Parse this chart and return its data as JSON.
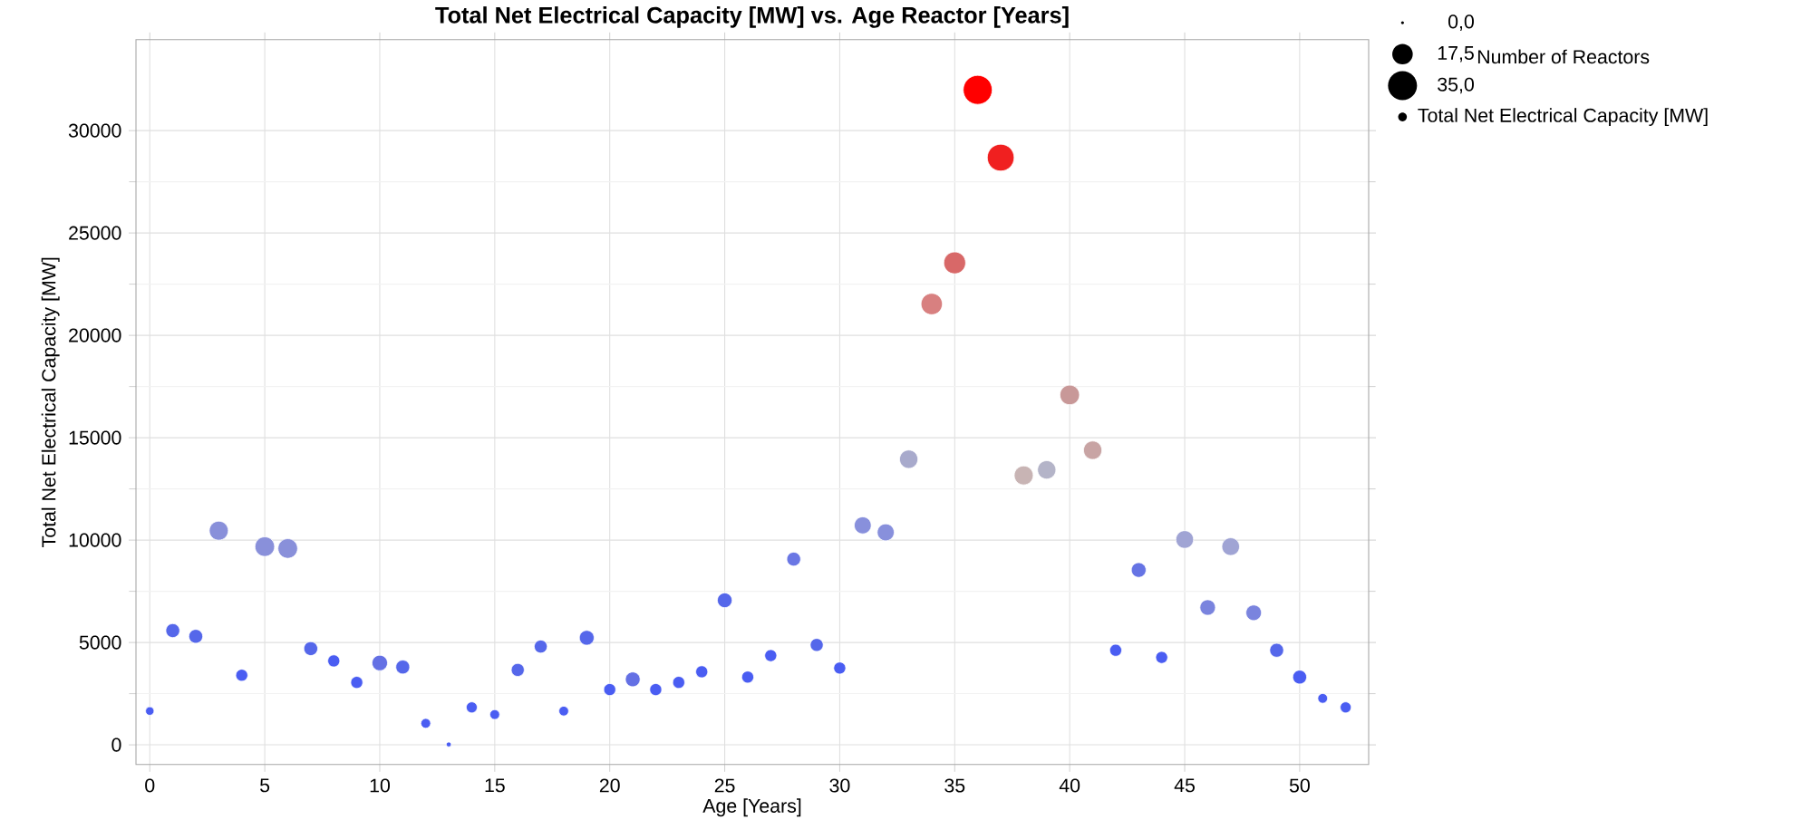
{
  "chart_data": {
    "type": "bubble",
    "title": "Total Net Electrical Capacity [MW] vs. Age Reactor [Years]",
    "xlabel": "Age [Years]",
    "ylabel": "Total Net Electrical Capacity [MW]",
    "legend_title": "Number of Reactors",
    "xlim": [
      -0.6,
      53
    ],
    "xticks": [
      0,
      5,
      10,
      15,
      20,
      25,
      30,
      35,
      40,
      45,
      50
    ],
    "ylim": [
      -960,
      34440
    ],
    "yticks": [
      0,
      5000,
      10000,
      15000,
      20000,
      25000,
      30000
    ],
    "grid": true,
    "legend": "top right",
    "marker": "circle",
    "size_legend": [
      {
        "value": 0,
        "label": "0,0"
      },
      {
        "value": 17.5,
        "label": "17,5"
      },
      {
        "value": 35,
        "label": "35,0"
      }
    ],
    "series": [
      {
        "name": "Total Net Electrical Capacity [MW]",
        "x": [
          0,
          1,
          2,
          3,
          4,
          5,
          6,
          7,
          8,
          9,
          10,
          11,
          12,
          13,
          14,
          15,
          16,
          17,
          18,
          19,
          20,
          21,
          22,
          23,
          24,
          25,
          26,
          27,
          28,
          29,
          30,
          31,
          32,
          33,
          34,
          35,
          36,
          37,
          38,
          39,
          40,
          41,
          42,
          43,
          44,
          45,
          46,
          47,
          48,
          49,
          50,
          51,
          52
        ],
        "values": [
          1650,
          5580,
          5300,
          10460,
          3400,
          9680,
          9590,
          4700,
          4100,
          3050,
          4000,
          3800,
          1050,
          20,
          1830,
          1480,
          3660,
          4800,
          1650,
          5230,
          2700,
          3200,
          2700,
          3050,
          3570,
          7060,
          3310,
          4360,
          9070,
          4880,
          3750,
          10720,
          10380,
          13950,
          21530,
          23540,
          31990,
          28680,
          13160,
          13430,
          17090,
          14390,
          4620,
          8540,
          4270,
          10030,
          6710,
          9680,
          6450,
          4620,
          3310,
          2270,
          1830
        ],
        "sizes": [
          3,
          8,
          8,
          15,
          6,
          16,
          16,
          8,
          6,
          6,
          10,
          8,
          4,
          1,
          5,
          4,
          7,
          7,
          4,
          9,
          6,
          9,
          6,
          6,
          6,
          9,
          6,
          6,
          8,
          7,
          6,
          12,
          12,
          14,
          19,
          20,
          35,
          30,
          15,
          14,
          16,
          14,
          6,
          9,
          6,
          13,
          10,
          13,
          10,
          8,
          8,
          4,
          5
        ],
        "colors": [
          "#4a5df2",
          "#5567ea",
          "#5567ea",
          "#8990da",
          "#4a5df2",
          "#8990da",
          "#8990da",
          "#5567ea",
          "#4a5df2",
          "#4a5df2",
          "#6470e4",
          "#5567ea",
          "#4a5df2",
          "#4a5df2",
          "#4a5df2",
          "#4a5df2",
          "#5567ea",
          "#5567ea",
          "#4a5df2",
          "#5567ea",
          "#4a5df2",
          "#6470e4",
          "#4a5df2",
          "#4a5df2",
          "#4a5df2",
          "#5567ea",
          "#4a5df2",
          "#4a5df2",
          "#6a77e4",
          "#5567ea",
          "#4a5df2",
          "#8890dc",
          "#8890dc",
          "#a8aacc",
          "#d88080",
          "#d86868",
          "#ff0000",
          "#f02020",
          "#c8b4b4",
          "#b4b4c8",
          "#c89898",
          "#c8a4a4",
          "#4a5df2",
          "#6674e4",
          "#4a5df2",
          "#a0a4d4",
          "#7a84de",
          "#a0a4d4",
          "#7a84de",
          "#5567ea",
          "#4a5df2",
          "#4a5df2",
          "#4a5df2"
        ]
      }
    ]
  }
}
